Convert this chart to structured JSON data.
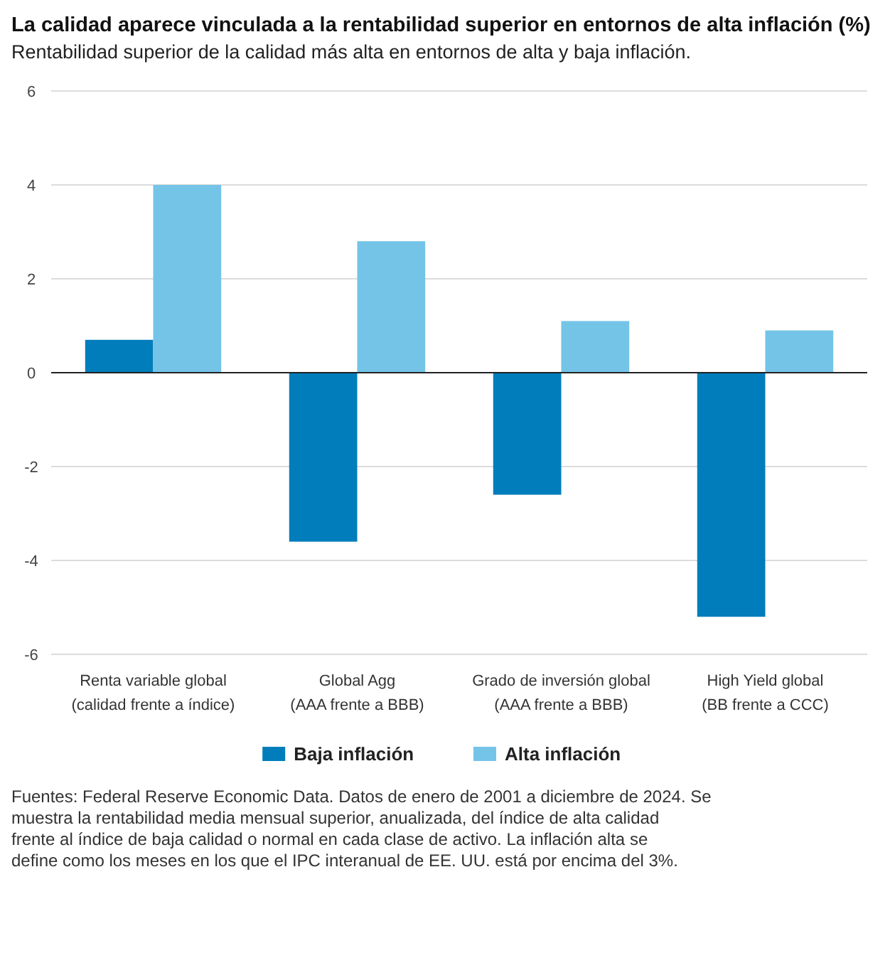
{
  "chart_data": {
    "type": "bar",
    "title": "La calidad aparece vinculada a la rentabilidad superior en entornos de alta inflación (%)",
    "subtitle": "Rentabilidad superior de la calidad más alta en entornos de alta y baja inflación.",
    "categories": [
      "Renta variable global\n(calidad frente a índice)",
      "Global Agg\n(AAA frente a BBB)",
      "Grado de inversión global\n(AAA frente a BBB)",
      "High Yield global\n(BB frente a CCC)"
    ],
    "series": [
      {
        "name": "Baja inflación",
        "color": "#007dba",
        "values": [
          0.7,
          -3.6,
          -2.6,
          -5.2
        ]
      },
      {
        "name": "Alta inflación",
        "color": "#74c4e8",
        "values": [
          4.0,
          2.8,
          1.1,
          0.9
        ]
      }
    ],
    "ylim": [
      -6,
      6
    ],
    "yticks": [
      -6,
      -4,
      -2,
      0,
      2,
      4,
      6
    ],
    "grid": "y",
    "legend": "bottom",
    "annotations": [
      "Fuentes: Federal Reserve Economic Data. Datos de enero de 2001 a diciembre de 2024. Se muestra la rentabilidad media mensual superior, anualizada, del índice de alta calidad frente al índice de baja calidad o normal en cada clase de activo. La inflación alta se define como los meses en los que el IPC interanual de EE. UU. está por encima del 3%."
    ]
  }
}
